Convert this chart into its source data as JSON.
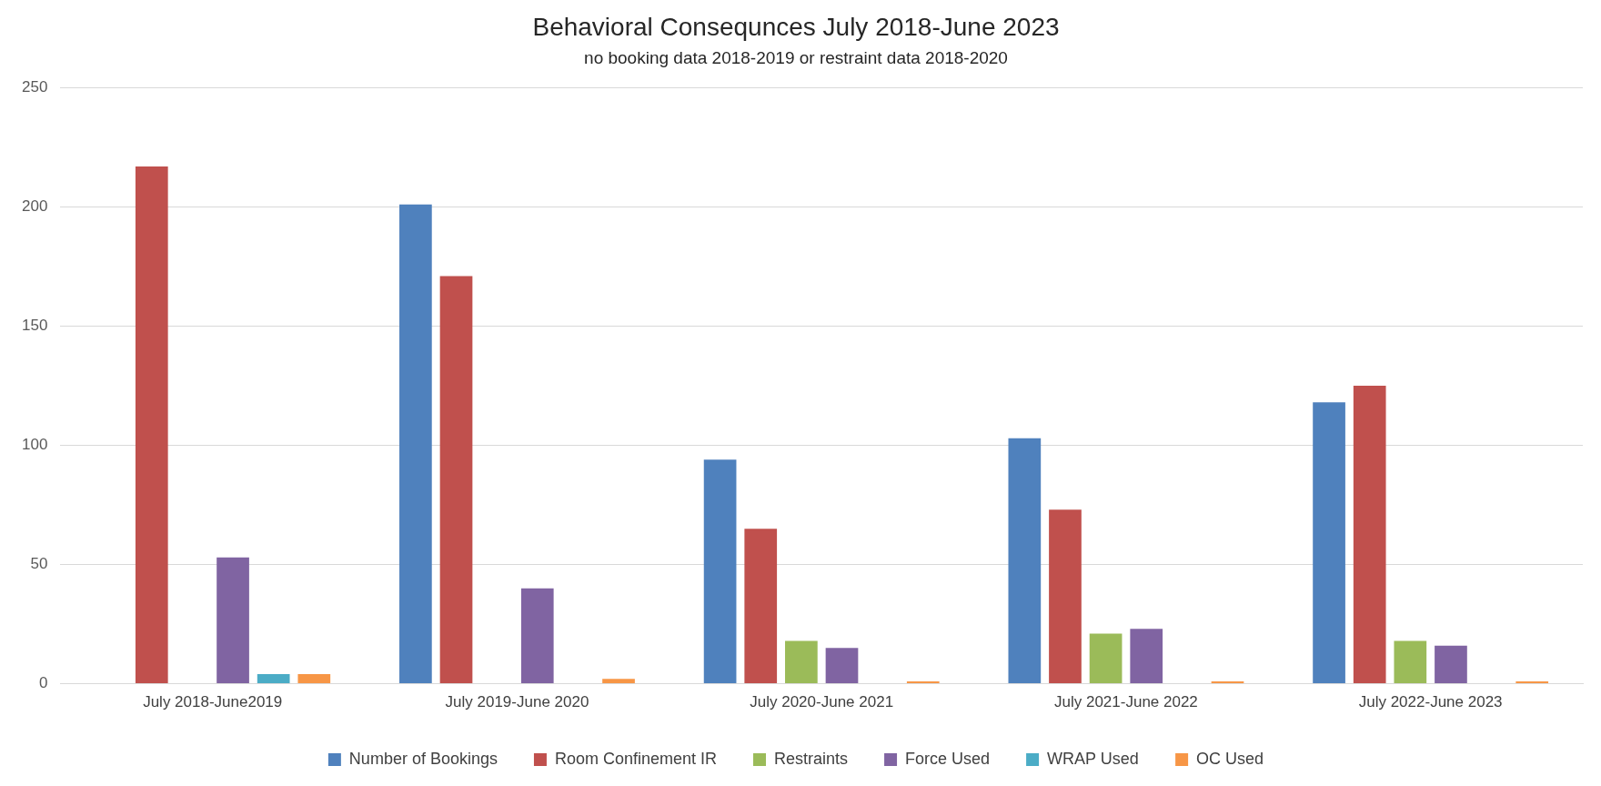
{
  "chart_data": {
    "type": "bar",
    "title": "Behavioral Consequnces July 2018-June 2023",
    "subtitle": "no booking data 2018-2019 or restraint data 2018-2020",
    "categories": [
      "July 2018-June2019",
      "July 2019-June 2020",
      "July 2020-June 2021",
      "July 2021-June 2022",
      "July 2022-June 2023"
    ],
    "series": [
      {
        "name": "Number of Bookings",
        "color": "#4f81bd",
        "values": [
          null,
          201,
          94,
          103,
          118
        ]
      },
      {
        "name": "Room Confinement IR",
        "color": "#c0504d",
        "values": [
          217,
          171,
          65,
          73,
          125
        ]
      },
      {
        "name": "Restraints",
        "color": "#9bbb59",
        "values": [
          null,
          null,
          18,
          21,
          18
        ]
      },
      {
        "name": "Force Used",
        "color": "#8064a2",
        "values": [
          53,
          40,
          15,
          23,
          16
        ]
      },
      {
        "name": "WRAP Used",
        "color": "#4bacc6",
        "values": [
          4,
          null,
          null,
          null,
          null
        ]
      },
      {
        "name": "OC Used",
        "color": "#f79646",
        "values": [
          4,
          2,
          1,
          1,
          1
        ]
      }
    ],
    "ylim": [
      0,
      250
    ],
    "yticks": [
      0,
      50,
      100,
      150,
      200,
      250
    ],
    "grid": "y",
    "legend": "bottom"
  }
}
